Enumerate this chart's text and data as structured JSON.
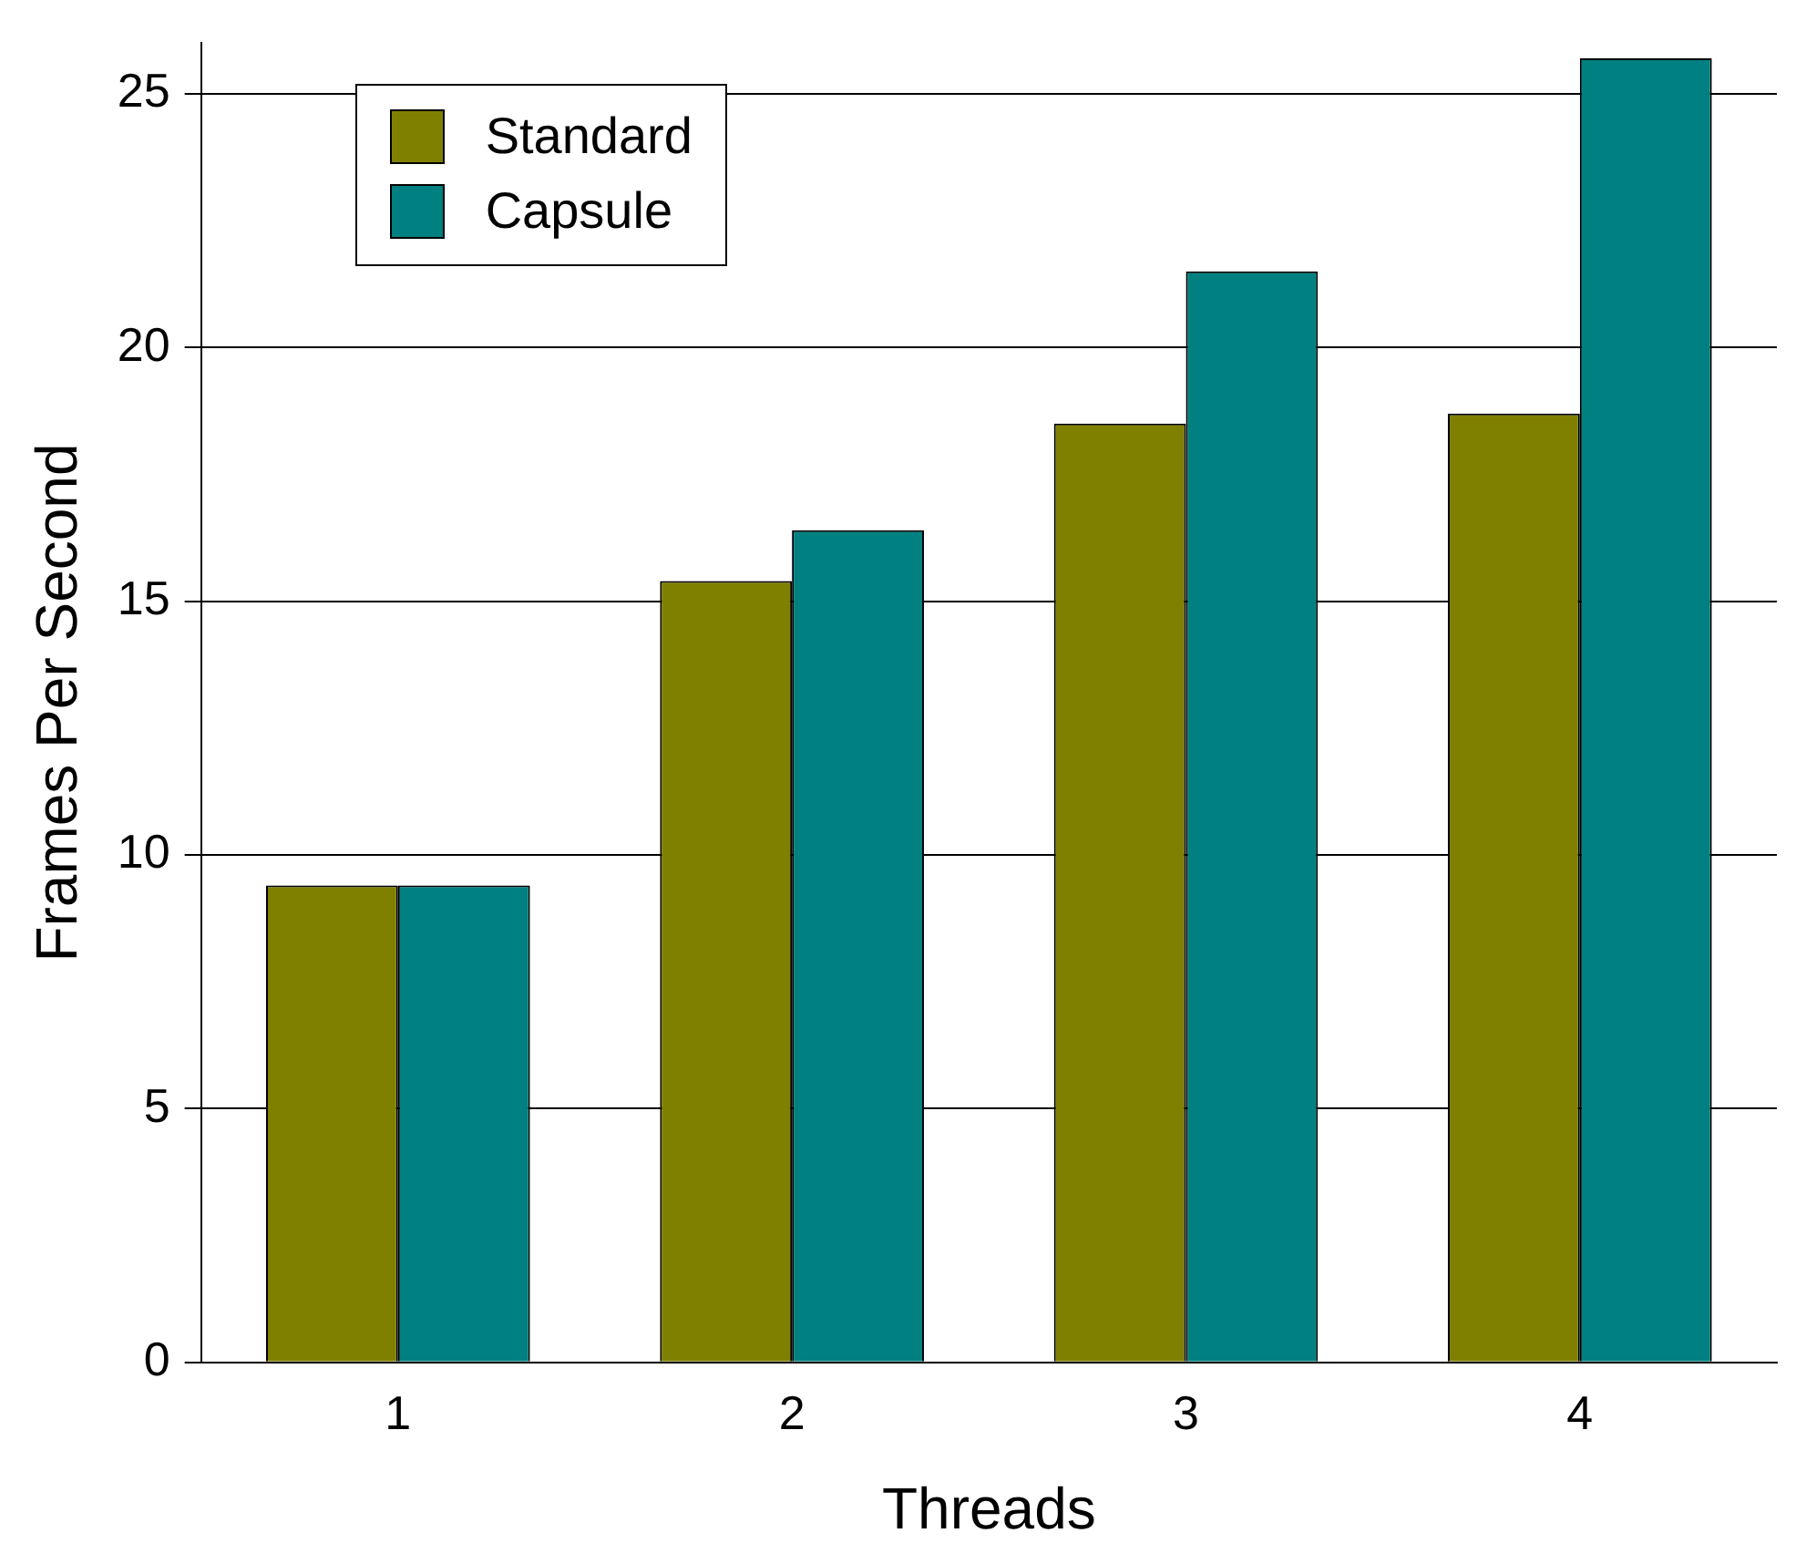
{
  "chart_data": {
    "type": "bar",
    "xlabel": "Threads",
    "ylabel": "Frames Per Second",
    "categories": [
      "1",
      "2",
      "3",
      "4"
    ],
    "series": [
      {
        "name": "Standard",
        "color": "#808000",
        "values": [
          9.4,
          15.4,
          18.5,
          18.7
        ]
      },
      {
        "name": "Capsule",
        "color": "#008080",
        "values": [
          9.4,
          16.4,
          21.5,
          25.7
        ]
      }
    ],
    "ylim": [
      0,
      26
    ],
    "yticks": [
      0,
      5,
      10,
      15,
      20,
      25
    ],
    "grid": "y",
    "legend": "top left"
  }
}
